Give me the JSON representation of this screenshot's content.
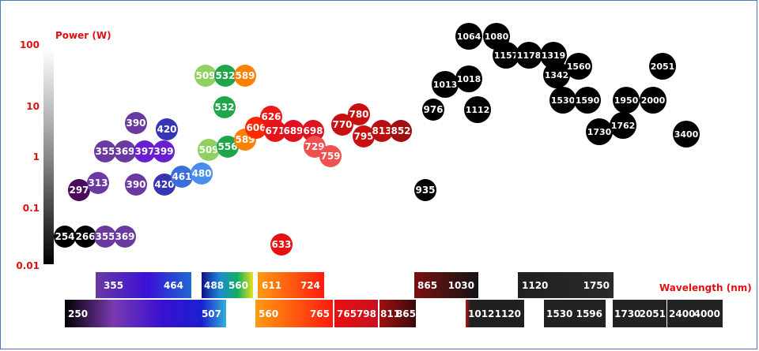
{
  "chart_data": {
    "type": "scatter",
    "ylabel": "Power (W)",
    "xlabel": "Wavelength (nm)",
    "yscale": "log",
    "ylim": [
      0.01,
      100
    ],
    "yticks": [
      "100",
      "10",
      "1",
      "0.1",
      "0.01"
    ],
    "points": [
      {
        "label": "254",
        "x": 254,
        "y": 0.03,
        "color": "#000000"
      },
      {
        "label": "266",
        "x": 266,
        "y": 0.03,
        "color": "#000000"
      },
      {
        "label": "355",
        "x": 355,
        "y": 0.03,
        "color": "#6a3aa0"
      },
      {
        "label": "369",
        "x": 369,
        "y": 0.03,
        "color": "#6a3aa0"
      },
      {
        "label": "297",
        "x": 297,
        "y": 0.22,
        "color": "#4b0a5a"
      },
      {
        "label": "313",
        "x": 313,
        "y": 0.28,
        "color": "#6a3aa0"
      },
      {
        "label": "390",
        "x": 390,
        "y": 0.26,
        "color": "#6a3aa0"
      },
      {
        "label": "420",
        "x": 420,
        "y": 0.26,
        "color": "#3535b5"
      },
      {
        "label": "461",
        "x": 461,
        "y": 0.32,
        "color": "#3a6ed8"
      },
      {
        "label": "480",
        "x": 480,
        "y": 0.38,
        "color": "#4a8ff0"
      },
      {
        "label": "355",
        "x": 355,
        "y": 1.3,
        "color": "#6a3aa0"
      },
      {
        "label": "369",
        "x": 369,
        "y": 1.3,
        "color": "#6a3aa0"
      },
      {
        "label": "397",
        "x": 397,
        "y": 1.3,
        "color": "#6a1ed2"
      },
      {
        "label": "399",
        "x": 399,
        "y": 1.3,
        "color": "#6a1ed2"
      },
      {
        "label": "390",
        "x": 390,
        "y": 4.5,
        "color": "#6a3aa0"
      },
      {
        "label": "420",
        "x": 420,
        "y": 3.7,
        "color": "#3535b5"
      },
      {
        "label": "509",
        "x": 509,
        "y": 1.3,
        "color": "#8fd060"
      },
      {
        "label": "556",
        "x": 556,
        "y": 1.5,
        "color": "#1ea64a"
      },
      {
        "label": "589",
        "x": 589,
        "y": 2.0,
        "color": "#ff8000"
      },
      {
        "label": "532",
        "x": 532,
        "y": 7.3,
        "color": "#1ea64a"
      },
      {
        "label": "509",
        "x": 509,
        "y": 36,
        "color": "#8fd060"
      },
      {
        "label": "532",
        "x": 532,
        "y": 36,
        "color": "#1ea64a"
      },
      {
        "label": "589",
        "x": 589,
        "y": 36,
        "color": "#ff8000"
      },
      {
        "label": "606",
        "x": 606,
        "y": 3.6,
        "color": "#ff2800"
      },
      {
        "label": "626",
        "x": 626,
        "y": 5.5,
        "color": "#f01818"
      },
      {
        "label": "671",
        "x": 671,
        "y": 3.3,
        "color": "#e41418"
      },
      {
        "label": "689",
        "x": 689,
        "y": 3.3,
        "color": "#e01020"
      },
      {
        "label": "698",
        "x": 698,
        "y": 3.3,
        "color": "#e01020"
      },
      {
        "label": "729",
        "x": 729,
        "y": 1.4,
        "color": "#f05050"
      },
      {
        "label": "759",
        "x": 759,
        "y": 1.0,
        "color": "#f05050"
      },
      {
        "label": "633",
        "x": 633,
        "y": 0.016,
        "color": "#e81010"
      },
      {
        "label": "770",
        "x": 770,
        "y": 4.1,
        "color": "#c81010"
      },
      {
        "label": "780",
        "x": 780,
        "y": 6.2,
        "color": "#c81010"
      },
      {
        "label": "795",
        "x": 795,
        "y": 2.6,
        "color": "#c81010"
      },
      {
        "label": "813",
        "x": 813,
        "y": 3.3,
        "color": "#b81010"
      },
      {
        "label": "852",
        "x": 852,
        "y": 3.3,
        "color": "#a01010"
      },
      {
        "label": "935",
        "x": 935,
        "y": 0.2,
        "color": "#000000"
      },
      {
        "label": "976",
        "x": 976,
        "y": 7.2,
        "color": "#000000"
      },
      {
        "label": "1013",
        "x": 1013,
        "y": 22,
        "color": "#000000"
      },
      {
        "label": "1018",
        "x": 1018,
        "y": 25,
        "color": "#000000"
      },
      {
        "label": "1112",
        "x": 1112,
        "y": 7.2,
        "color": "#000000"
      },
      {
        "label": "1064",
        "x": 1064,
        "y": 90,
        "color": "#000000"
      },
      {
        "label": "1080",
        "x": 1080,
        "y": 90,
        "color": "#000000"
      },
      {
        "label": "1157",
        "x": 1157,
        "y": 45,
        "color": "#000000"
      },
      {
        "label": "1178",
        "x": 1178,
        "y": 45,
        "color": "#000000"
      },
      {
        "label": "1319",
        "x": 1319,
        "y": 45,
        "color": "#000000"
      },
      {
        "label": "1342",
        "x": 1342,
        "y": 28,
        "color": "#000000"
      },
      {
        "label": "1560",
        "x": 1560,
        "y": 37,
        "color": "#000000"
      },
      {
        "label": "1530",
        "x": 1530,
        "y": 11,
        "color": "#000000"
      },
      {
        "label": "1590",
        "x": 1590,
        "y": 11,
        "color": "#000000"
      },
      {
        "label": "1730",
        "x": 1730,
        "y": 3.0,
        "color": "#000000"
      },
      {
        "label": "1762",
        "x": 1762,
        "y": 4.0,
        "color": "#000000"
      },
      {
        "label": "1950",
        "x": 1950,
        "y": 11,
        "color": "#000000"
      },
      {
        "label": "2000",
        "x": 2000,
        "y": 11,
        "color": "#000000"
      },
      {
        "label": "2051",
        "x": 2051,
        "y": 37,
        "color": "#000000"
      },
      {
        "label": "3400",
        "x": 3400,
        "y": 2.8,
        "color": "#000000"
      }
    ],
    "bands_top": [
      {
        "start": "355",
        "end": "464"
      },
      {
        "start": "488",
        "end": "560"
      },
      {
        "start": "611",
        "end": "724"
      },
      {
        "start": "865",
        "end": "1030"
      },
      {
        "start": "1120",
        "end": "1750"
      }
    ],
    "bands_bottom": [
      {
        "start": "250",
        "end": "507"
      },
      {
        "start": "560",
        "end": "765"
      },
      {
        "start": "765",
        "end": "798"
      },
      {
        "start": "811",
        "end": "865"
      },
      {
        "start": "1012",
        "end": "1120"
      },
      {
        "start": "1530",
        "end": "1596"
      },
      {
        "start": "1730",
        "end": "2051"
      },
      {
        "start": "2400",
        "end": "4000"
      }
    ]
  }
}
